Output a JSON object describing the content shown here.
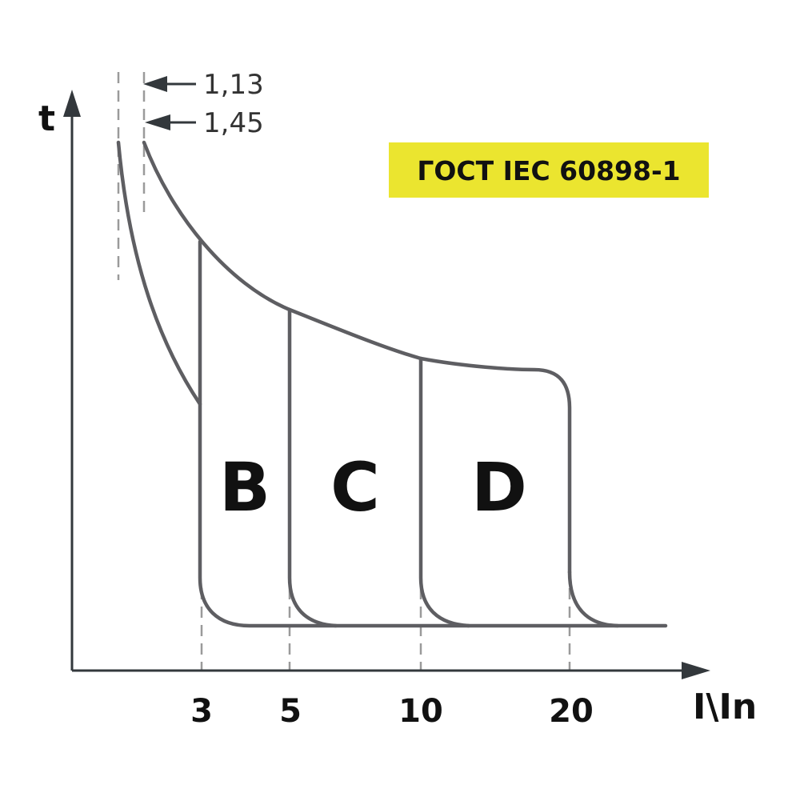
{
  "diagram": {
    "axes": {
      "y_label": "t",
      "x_label": "I\\In"
    },
    "x_ticks": [
      "3",
      "5",
      "10",
      "20"
    ],
    "regions": [
      "B",
      "C",
      "D"
    ],
    "markers": [
      "1,13",
      "1,45"
    ],
    "badge": {
      "text": "ГОСТ IEC 60898-1"
    }
  },
  "colors": {
    "axis": "#33383c",
    "curve": "#5e5e62",
    "dashed": "#9a9a9a",
    "badge_bg": "#ebe52f",
    "text": "#111111"
  }
}
